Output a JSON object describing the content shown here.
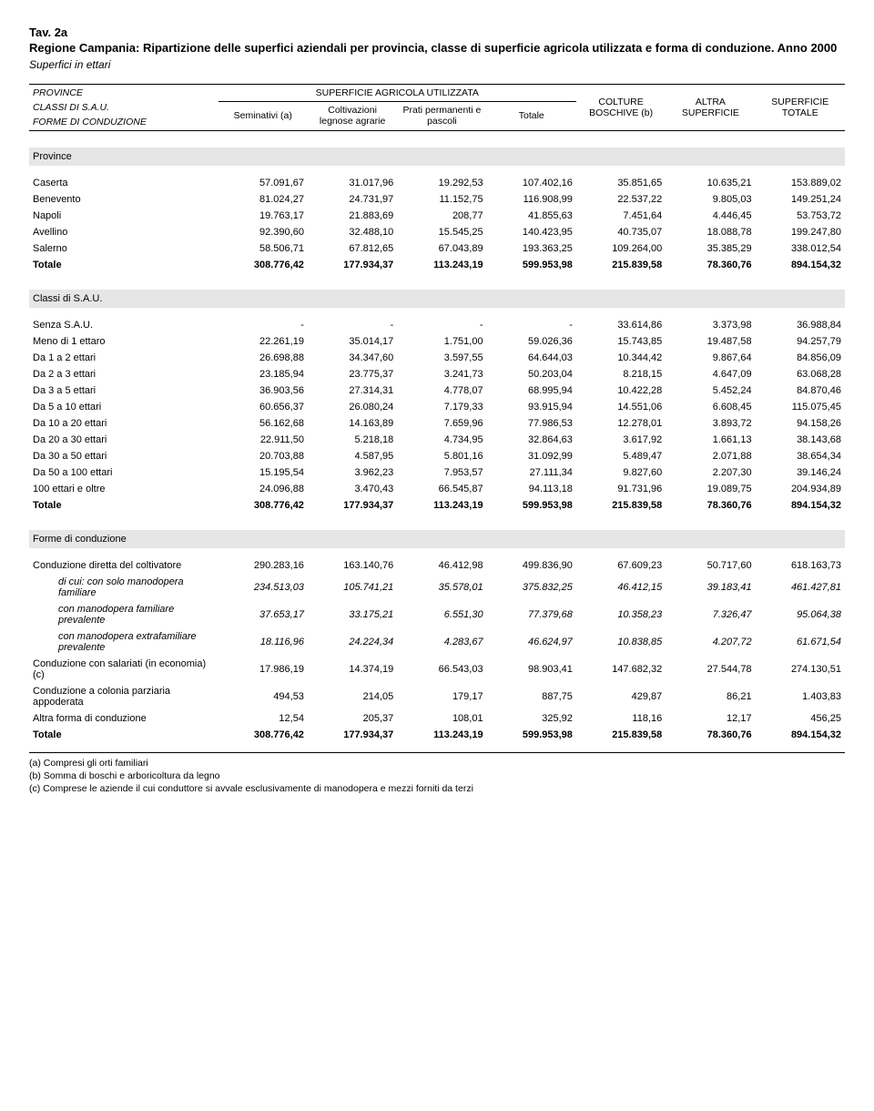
{
  "header": {
    "tav": "Tav. 2a",
    "title": "Regione Campania: Ripartizione delle superfici aziendali per provincia, classe di superficie agricola utilizzata e forma di conduzione. Anno 2000",
    "subtitle": "Superfici in ettari"
  },
  "columns": {
    "leftHead1": "PROVINCE",
    "leftHead2": "CLASSI DI S.A.U.",
    "leftHead3": "FORME DI CONDUZIONE",
    "groupLabel": "SUPERFICIE AGRICOLA UTILIZZATA",
    "c1": "Seminativi (a)",
    "c2": "Coltivazioni legnose agrarie",
    "c3": "Prati permanenti e pascoli",
    "c4": "Totale",
    "c5a": "COLTURE",
    "c5b": "BOSCHIVE (b)",
    "c6a": "ALTRA",
    "c6b": "SUPERFICIE",
    "c7a": "SUPERFICIE",
    "c7b": "TOTALE"
  },
  "sections": [
    {
      "title": "Province",
      "rows": [
        {
          "label": "Caserta",
          "v": [
            "57.091,67",
            "31.017,96",
            "19.292,53",
            "107.402,16",
            "35.851,65",
            "10.635,21",
            "153.889,02"
          ]
        },
        {
          "label": "Benevento",
          "v": [
            "81.024,27",
            "24.731,97",
            "11.152,75",
            "116.908,99",
            "22.537,22",
            "9.805,03",
            "149.251,24"
          ]
        },
        {
          "label": "Napoli",
          "v": [
            "19.763,17",
            "21.883,69",
            "208,77",
            "41.855,63",
            "7.451,64",
            "4.446,45",
            "53.753,72"
          ]
        },
        {
          "label": "Avellino",
          "v": [
            "92.390,60",
            "32.488,10",
            "15.545,25",
            "140.423,95",
            "40.735,07",
            "18.088,78",
            "199.247,80"
          ]
        },
        {
          "label": "Salerno",
          "v": [
            "58.506,71",
            "67.812,65",
            "67.043,89",
            "193.363,25",
            "109.264,00",
            "35.385,29",
            "338.012,54"
          ]
        },
        {
          "label": "Totale",
          "bold": true,
          "v": [
            "308.776,42",
            "177.934,37",
            "113.243,19",
            "599.953,98",
            "215.839,58",
            "78.360,76",
            "894.154,32"
          ]
        }
      ]
    },
    {
      "title": "Classi di S.A.U.",
      "rows": [
        {
          "label": "Senza S.A.U.",
          "v": [
            "-",
            "-",
            "-",
            "-",
            "33.614,86",
            "3.373,98",
            "36.988,84"
          ]
        },
        {
          "label": "Meno di 1 ettaro",
          "v": [
            "22.261,19",
            "35.014,17",
            "1.751,00",
            "59.026,36",
            "15.743,85",
            "19.487,58",
            "94.257,79"
          ]
        },
        {
          "label": "Da 1 a 2 ettari",
          "v": [
            "26.698,88",
            "34.347,60",
            "3.597,55",
            "64.644,03",
            "10.344,42",
            "9.867,64",
            "84.856,09"
          ]
        },
        {
          "label": "Da 2 a 3 ettari",
          "v": [
            "23.185,94",
            "23.775,37",
            "3.241,73",
            "50.203,04",
            "8.218,15",
            "4.647,09",
            "63.068,28"
          ]
        },
        {
          "label": "Da 3 a 5 ettari",
          "v": [
            "36.903,56",
            "27.314,31",
            "4.778,07",
            "68.995,94",
            "10.422,28",
            "5.452,24",
            "84.870,46"
          ]
        },
        {
          "label": "Da 5 a 10 ettari",
          "v": [
            "60.656,37",
            "26.080,24",
            "7.179,33",
            "93.915,94",
            "14.551,06",
            "6.608,45",
            "115.075,45"
          ]
        },
        {
          "label": "Da 10 a 20 ettari",
          "v": [
            "56.162,68",
            "14.163,89",
            "7.659,96",
            "77.986,53",
            "12.278,01",
            "3.893,72",
            "94.158,26"
          ]
        },
        {
          "label": "Da 20 a 30 ettari",
          "v": [
            "22.911,50",
            "5.218,18",
            "4.734,95",
            "32.864,63",
            "3.617,92",
            "1.661,13",
            "38.143,68"
          ]
        },
        {
          "label": "Da 30 a 50 ettari",
          "v": [
            "20.703,88",
            "4.587,95",
            "5.801,16",
            "31.092,99",
            "5.489,47",
            "2.071,88",
            "38.654,34"
          ]
        },
        {
          "label": "Da 50 a 100 ettari",
          "v": [
            "15.195,54",
            "3.962,23",
            "7.953,57",
            "27.111,34",
            "9.827,60",
            "2.207,30",
            "39.146,24"
          ]
        },
        {
          "label": "100 ettari e oltre",
          "v": [
            "24.096,88",
            "3.470,43",
            "66.545,87",
            "94.113,18",
            "91.731,96",
            "19.089,75",
            "204.934,89"
          ]
        },
        {
          "label": "Totale",
          "bold": true,
          "v": [
            "308.776,42",
            "177.934,37",
            "113.243,19",
            "599.953,98",
            "215.839,58",
            "78.360,76",
            "894.154,32"
          ]
        }
      ]
    },
    {
      "title": "Forme di conduzione",
      "rows": [
        {
          "label": "Conduzione diretta del coltivatore",
          "v": [
            "290.283,16",
            "163.140,76",
            "46.412,98",
            "499.836,90",
            "67.609,23",
            "50.717,60",
            "618.163,73"
          ]
        },
        {
          "label": "di cui: con solo manodopera familiare",
          "ital": true,
          "indent": 1,
          "v": [
            "234.513,03",
            "105.741,21",
            "35.578,01",
            "375.832,25",
            "46.412,15",
            "39.183,41",
            "461.427,81"
          ]
        },
        {
          "label": "con manodopera familiare prevalente",
          "ital": true,
          "indent": 1,
          "v": [
            "37.653,17",
            "33.175,21",
            "6.551,30",
            "77.379,68",
            "10.358,23",
            "7.326,47",
            "95.064,38"
          ]
        },
        {
          "label": "con manodopera extrafamiliare prevalente",
          "ital": true,
          "indent": 1,
          "v": [
            "18.116,96",
            "24.224,34",
            "4.283,67",
            "46.624,97",
            "10.838,85",
            "4.207,72",
            "61.671,54"
          ]
        },
        {
          "label": "Conduzione con salariati (in economia) (c)",
          "v": [
            "17.986,19",
            "14.374,19",
            "66.543,03",
            "98.903,41",
            "147.682,32",
            "27.544,78",
            "274.130,51"
          ]
        },
        {
          "label": "Conduzione a colonia parziaria appoderata",
          "v": [
            "494,53",
            "214,05",
            "179,17",
            "887,75",
            "429,87",
            "86,21",
            "1.403,83"
          ]
        },
        {
          "label": "Altra forma di conduzione",
          "v": [
            "12,54",
            "205,37",
            "108,01",
            "325,92",
            "118,16",
            "12,17",
            "456,25"
          ]
        },
        {
          "label": "Totale",
          "bold": true,
          "v": [
            "308.776,42",
            "177.934,37",
            "113.243,19",
            "599.953,98",
            "215.839,58",
            "78.360,76",
            "894.154,32"
          ]
        }
      ]
    }
  ],
  "footnotes": [
    "(a) Compresi gli orti familiari",
    "(b) Somma di boschi e arboricoltura da legno",
    "(c) Comprese le aziende il cui conduttore si avvale esclusivamente di manodopera e mezzi forniti da terzi"
  ]
}
